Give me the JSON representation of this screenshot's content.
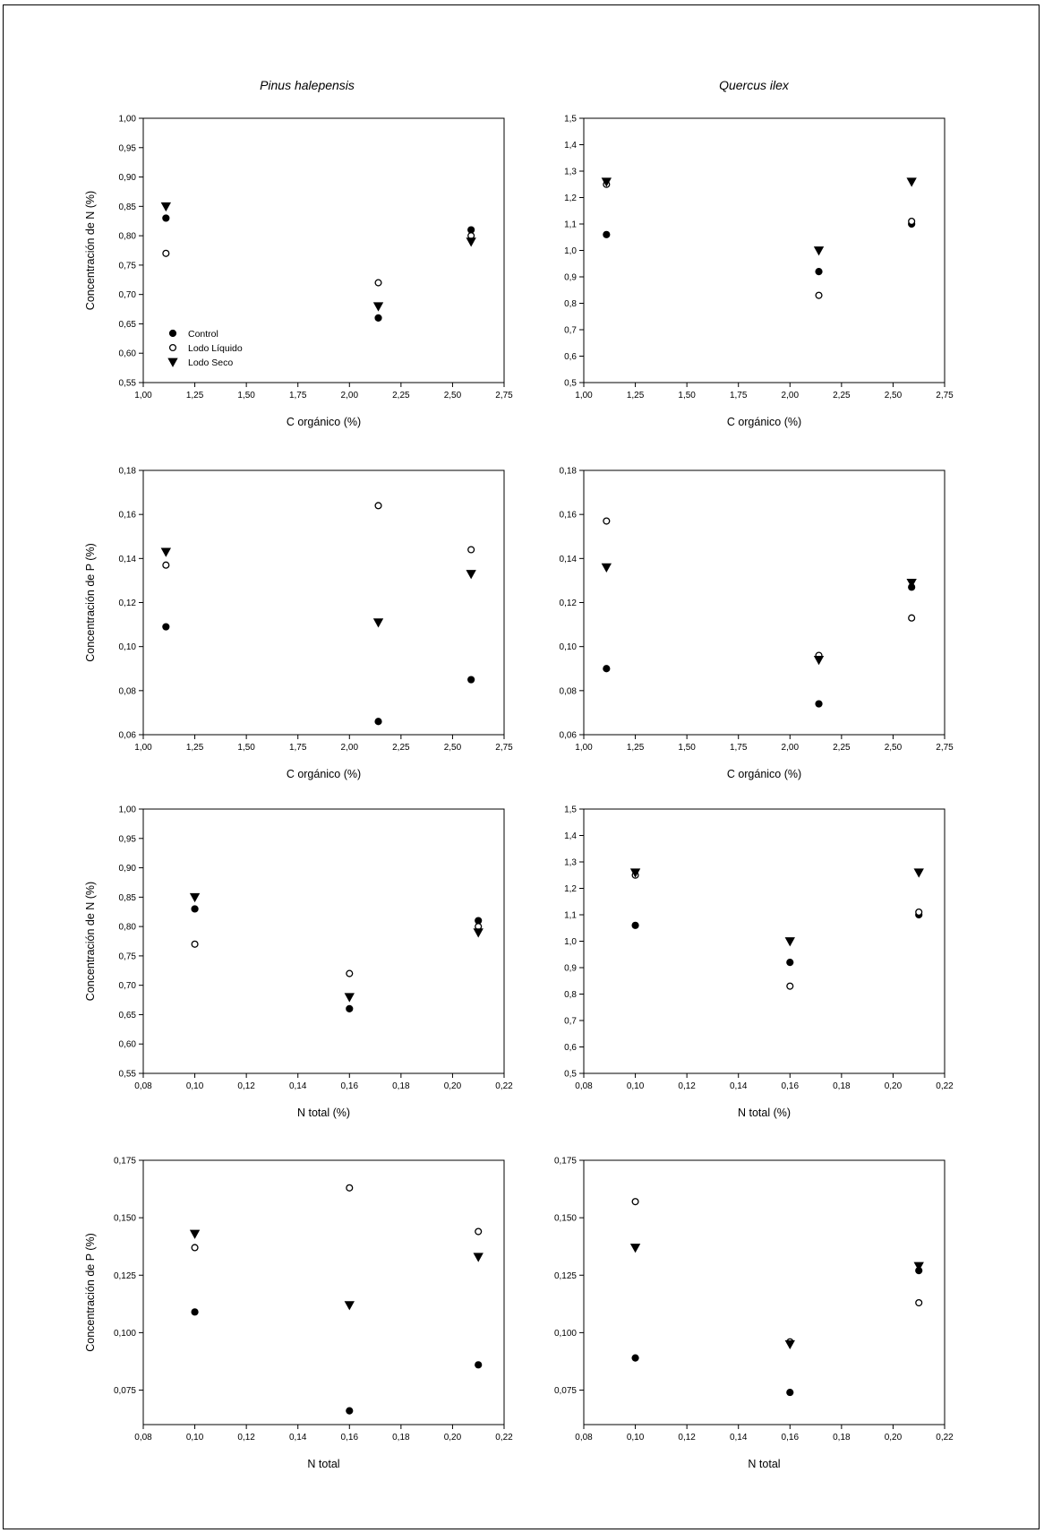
{
  "column_titles": [
    "Pinus halepensis",
    "Quercus ilex"
  ],
  "legend": {
    "entries": [
      "Control",
      "Lodo Líquido",
      "Lodo Seco"
    ],
    "placement": "lower-left of top-left panel"
  },
  "colors": {
    "axes": "#000000",
    "control_fill": "#000000",
    "liquido_fill": "#ffffff",
    "seco_fill": "#000000"
  },
  "chart_data": [
    {
      "type": "scatter",
      "species": "Pinus halepensis",
      "xlabel": "C orgánico (%)",
      "ylabel": "Concentración de N (%)",
      "xlim": [
        1.0,
        2.75
      ],
      "ylim": [
        0.55,
        1.0
      ],
      "xticks": [
        "1,00",
        "1,25",
        "1,50",
        "1,75",
        "2,00",
        "2,25",
        "2,50",
        "2,75"
      ],
      "yticks": [
        "0,55",
        "0,60",
        "0,65",
        "0,70",
        "0,75",
        "0,80",
        "0,85",
        "0,90",
        "0,95",
        "1,00"
      ],
      "series": [
        {
          "name": "Control",
          "marker": "filled-circle",
          "x": [
            1.11,
            2.14,
            2.59
          ],
          "y": [
            0.83,
            0.66,
            0.81
          ]
        },
        {
          "name": "Lodo Líquido",
          "marker": "open-circle",
          "x": [
            1.11,
            2.14,
            2.59
          ],
          "y": [
            0.77,
            0.72,
            0.8
          ]
        },
        {
          "name": "Lodo Seco",
          "marker": "filled-triangle-down",
          "x": [
            1.11,
            2.14,
            2.59
          ],
          "y": [
            0.85,
            0.68,
            0.79
          ]
        }
      ]
    },
    {
      "type": "scatter",
      "species": "Quercus ilex",
      "xlabel": "C orgánico (%)",
      "ylabel": "",
      "xlim": [
        1.0,
        2.75
      ],
      "ylim": [
        0.5,
        1.5
      ],
      "xticks": [
        "1,00",
        "1,25",
        "1,50",
        "1,75",
        "2,00",
        "2,25",
        "2,50",
        "2,75"
      ],
      "yticks": [
        "0,5",
        "0,6",
        "0,7",
        "0,8",
        "0,9",
        "1,0",
        "1,1",
        "1,2",
        "1,3",
        "1,4",
        "1,5"
      ],
      "series": [
        {
          "name": "Control",
          "marker": "filled-circle",
          "x": [
            1.11,
            2.14,
            2.59
          ],
          "y": [
            1.06,
            0.92,
            1.1
          ]
        },
        {
          "name": "Lodo Líquido",
          "marker": "open-circle",
          "x": [
            1.11,
            2.14,
            2.59
          ],
          "y": [
            1.25,
            0.83,
            1.11
          ]
        },
        {
          "name": "Lodo Seco",
          "marker": "filled-triangle-down",
          "x": [
            1.11,
            2.14,
            2.59
          ],
          "y": [
            1.26,
            1.0,
            1.26
          ]
        }
      ]
    },
    {
      "type": "scatter",
      "species": "Pinus halepensis",
      "xlabel": "C orgánico (%)",
      "ylabel": "Concentración de P (%)",
      "xlim": [
        1.0,
        2.75
      ],
      "ylim": [
        0.06,
        0.18
      ],
      "xticks": [
        "1,00",
        "1,25",
        "1,50",
        "1,75",
        "2,00",
        "2,25",
        "2,50",
        "2,75"
      ],
      "yticks": [
        "0,06",
        "0,08",
        "0,10",
        "0,12",
        "0,14",
        "0,16",
        "0,18"
      ],
      "series": [
        {
          "name": "Control",
          "marker": "filled-circle",
          "x": [
            1.11,
            2.14,
            2.59
          ],
          "y": [
            0.109,
            0.066,
            0.085
          ]
        },
        {
          "name": "Lodo Líquido",
          "marker": "open-circle",
          "x": [
            1.11,
            2.14,
            2.59
          ],
          "y": [
            0.137,
            0.164,
            0.144
          ]
        },
        {
          "name": "Lodo Seco",
          "marker": "filled-triangle-down",
          "x": [
            1.11,
            2.14,
            2.59
          ],
          "y": [
            0.143,
            0.111,
            0.133
          ]
        }
      ]
    },
    {
      "type": "scatter",
      "species": "Quercus ilex",
      "xlabel": "C orgánico (%)",
      "ylabel": "",
      "xlim": [
        1.0,
        2.75
      ],
      "ylim": [
        0.06,
        0.18
      ],
      "xticks": [
        "1,00",
        "1,25",
        "1,50",
        "1,75",
        "2,00",
        "2,25",
        "2,50",
        "2,75"
      ],
      "yticks": [
        "0,06",
        "0,08",
        "0,10",
        "0,12",
        "0,14",
        "0,16",
        "0,18"
      ],
      "series": [
        {
          "name": "Control",
          "marker": "filled-circle",
          "x": [
            1.11,
            2.14,
            2.59
          ],
          "y": [
            0.09,
            0.074,
            0.127
          ]
        },
        {
          "name": "Lodo Líquido",
          "marker": "open-circle",
          "x": [
            1.11,
            2.14,
            2.59
          ],
          "y": [
            0.157,
            0.096,
            0.113
          ]
        },
        {
          "name": "Lodo Seco",
          "marker": "filled-triangle-down",
          "x": [
            1.11,
            2.14,
            2.59
          ],
          "y": [
            0.136,
            0.094,
            0.129
          ]
        }
      ]
    },
    {
      "type": "scatter",
      "species": "Pinus halepensis",
      "xlabel": "N total (%)",
      "ylabel": "Concentración de N (%)",
      "xlim": [
        0.08,
        0.22
      ],
      "ylim": [
        0.55,
        1.0
      ],
      "xticks": [
        "0,08",
        "0,10",
        "0,12",
        "0,14",
        "0,16",
        "0,18",
        "0,20",
        "0,22"
      ],
      "yticks": [
        "0,55",
        "0,60",
        "0,65",
        "0,70",
        "0,75",
        "0,80",
        "0,85",
        "0,90",
        "0,95",
        "1,00"
      ],
      "series": [
        {
          "name": "Control",
          "marker": "filled-circle",
          "x": [
            0.1,
            0.16,
            0.21
          ],
          "y": [
            0.83,
            0.66,
            0.81
          ]
        },
        {
          "name": "Lodo Líquido",
          "marker": "open-circle",
          "x": [
            0.1,
            0.16,
            0.21
          ],
          "y": [
            0.77,
            0.72,
            0.8
          ]
        },
        {
          "name": "Lodo Seco",
          "marker": "filled-triangle-down",
          "x": [
            0.1,
            0.16,
            0.21
          ],
          "y": [
            0.85,
            0.68,
            0.79
          ]
        }
      ]
    },
    {
      "type": "scatter",
      "species": "Quercus ilex",
      "xlabel": "N total (%)",
      "ylabel": "",
      "xlim": [
        0.08,
        0.22
      ],
      "ylim": [
        0.5,
        1.5
      ],
      "xticks": [
        "0,08",
        "0,10",
        "0,12",
        "0,14",
        "0,16",
        "0,18",
        "0,20",
        "0,22"
      ],
      "yticks": [
        "0,5",
        "0,6",
        "0,7",
        "0,8",
        "0,9",
        "1,0",
        "1,1",
        "1,2",
        "1,3",
        "1,4",
        "1,5"
      ],
      "series": [
        {
          "name": "Control",
          "marker": "filled-circle",
          "x": [
            0.1,
            0.16,
            0.21
          ],
          "y": [
            1.06,
            0.92,
            1.1
          ]
        },
        {
          "name": "Lodo Líquido",
          "marker": "open-circle",
          "x": [
            0.1,
            0.16,
            0.21
          ],
          "y": [
            1.25,
            0.83,
            1.11
          ]
        },
        {
          "name": "Lodo Seco",
          "marker": "filled-triangle-down",
          "x": [
            0.1,
            0.16,
            0.21
          ],
          "y": [
            1.26,
            1.0,
            1.26
          ]
        }
      ]
    },
    {
      "type": "scatter",
      "species": "Pinus halepensis",
      "xlabel": "N total",
      "ylabel": "Concentración de P (%)",
      "xlim": [
        0.08,
        0.22
      ],
      "ylim": [
        0.06,
        0.175
      ],
      "xticks": [
        "0,08",
        "0,10",
        "0,12",
        "0,14",
        "0,16",
        "0,18",
        "0,20",
        "0,22"
      ],
      "yticks": [
        "0,075",
        "0,100",
        "0,125",
        "0,150",
        "0,175"
      ],
      "yticks_values": [
        0.075,
        0.1,
        0.125,
        0.15,
        0.175
      ],
      "series": [
        {
          "name": "Control",
          "marker": "filled-circle",
          "x": [
            0.1,
            0.16,
            0.21
          ],
          "y": [
            0.109,
            0.066,
            0.086
          ]
        },
        {
          "name": "Lodo Líquido",
          "marker": "open-circle",
          "x": [
            0.1,
            0.16,
            0.21
          ],
          "y": [
            0.137,
            0.163,
            0.144
          ]
        },
        {
          "name": "Lodo Seco",
          "marker": "filled-triangle-down",
          "x": [
            0.1,
            0.16,
            0.21
          ],
          "y": [
            0.143,
            0.112,
            0.133
          ]
        }
      ]
    },
    {
      "type": "scatter",
      "species": "Quercus ilex",
      "xlabel": "N total",
      "ylabel": "",
      "xlim": [
        0.08,
        0.22
      ],
      "ylim": [
        0.06,
        0.175
      ],
      "xticks": [
        "0,08",
        "0,10",
        "0,12",
        "0,14",
        "0,16",
        "0,18",
        "0,20",
        "0,22"
      ],
      "yticks": [
        "0,075",
        "0,100",
        "0,125",
        "0,150",
        "0,175"
      ],
      "yticks_values": [
        0.075,
        0.1,
        0.125,
        0.15,
        0.175
      ],
      "series": [
        {
          "name": "Control",
          "marker": "filled-circle",
          "x": [
            0.1,
            0.16,
            0.21
          ],
          "y": [
            0.089,
            0.074,
            0.127
          ]
        },
        {
          "name": "Lodo Líquido",
          "marker": "open-circle",
          "x": [
            0.1,
            0.16,
            0.21
          ],
          "y": [
            0.157,
            0.096,
            0.113
          ]
        },
        {
          "name": "Lodo Seco",
          "marker": "filled-triangle-down",
          "x": [
            0.1,
            0.16,
            0.21
          ],
          "y": [
            0.137,
            0.095,
            0.129
          ]
        }
      ]
    }
  ]
}
